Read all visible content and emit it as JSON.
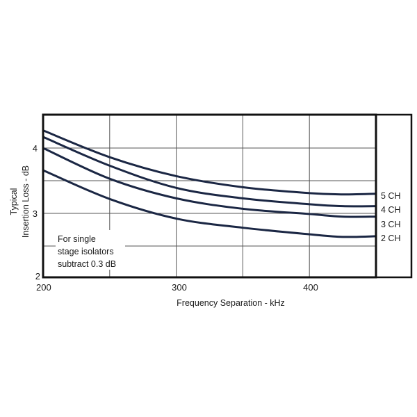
{
  "chart_data": {
    "type": "line",
    "title": "",
    "xlabel": "Frequency Separation - kHz",
    "ylabel_lines": [
      "Typical",
      "Insertion Loss - dB"
    ],
    "ylabel": "Typical Insertion Loss - dB",
    "xlim": [
      200,
      450
    ],
    "ylim": [
      2,
      4.5
    ],
    "x_ticks": [
      200,
      300,
      400
    ],
    "x_tick_labels": [
      "200",
      "300",
      "400"
    ],
    "x_gridlines": [
      250,
      300,
      350,
      400
    ],
    "y_ticks": [
      2,
      3,
      4
    ],
    "y_tick_labels": [
      "2",
      "3",
      "4"
    ],
    "y_gridlines": [
      2.5,
      3,
      3.5,
      4
    ],
    "grid": true,
    "legend_position": "right, inline labels at line ends",
    "line_color": "#1b2744",
    "x": [
      200,
      250,
      300,
      350,
      400,
      425,
      450
    ],
    "series": [
      {
        "name": "5 CH",
        "values": [
          4.27,
          3.86,
          3.57,
          3.4,
          3.31,
          3.29,
          3.3
        ]
      },
      {
        "name": "4 CH",
        "values": [
          4.17,
          3.73,
          3.39,
          3.23,
          3.14,
          3.11,
          3.11
        ]
      },
      {
        "name": "3 CH",
        "values": [
          4.0,
          3.53,
          3.23,
          3.07,
          2.99,
          2.95,
          2.95
        ]
      },
      {
        "name": "2 CH",
        "values": [
          3.66,
          3.22,
          2.92,
          2.78,
          2.68,
          2.64,
          2.65
        ]
      }
    ],
    "annotations": [
      {
        "text_lines": [
          "For single",
          "stage isolators",
          "subtract 0.3 dB"
        ],
        "position": "lower-left inside plot"
      }
    ]
  },
  "labels": {
    "x_axis_title": "Frequency Separation - kHz",
    "y_axis_title_line1": "Typical",
    "y_axis_title_line2": "Insertion Loss - dB",
    "x_tick_200": "200",
    "x_tick_300": "300",
    "x_tick_400": "400",
    "y_tick_2": "2",
    "y_tick_3": "3",
    "y_tick_4": "4",
    "legend_5ch": "5 CH",
    "legend_4ch": "4 CH",
    "legend_3ch": "3 CH",
    "legend_2ch": "2 CH",
    "note_line1": "For single",
    "note_line2": "stage isolators",
    "note_line3": "subtract 0.3 dB"
  }
}
